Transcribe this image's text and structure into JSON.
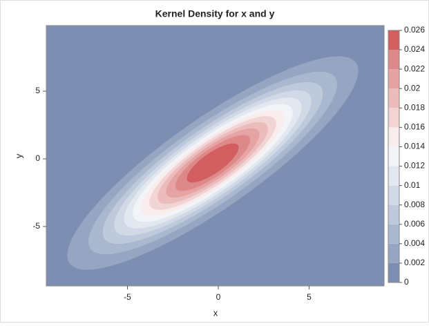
{
  "chart_data": {
    "type": "contour",
    "title": "Kernel Density for x and y",
    "x_label": "x",
    "y_label": "y",
    "xlim": [
      -9.47,
      9.13
    ],
    "xticks": [
      -5,
      0,
      5
    ],
    "ylim": [
      -9.39,
      9.85
    ],
    "yticks": [
      -5,
      0,
      5
    ],
    "zlim": [
      0,
      0.026
    ],
    "zticks": [
      0,
      0.002,
      0.004,
      0.006,
      0.008,
      0.01,
      0.012,
      0.014,
      0.016,
      0.018,
      0.02,
      0.022,
      0.024,
      0.026
    ],
    "colors": [
      "#7c8fb2",
      "#95a5c2",
      "#aab8cf",
      "#bec9dc",
      "#d1d9e6",
      "#e3e8f0",
      "#f3f4f8",
      "#f8eced",
      "#f2d4d5",
      "#ecbcbd",
      "#e5a3a4",
      "#dd898a",
      "#d25e60"
    ]
  }
}
